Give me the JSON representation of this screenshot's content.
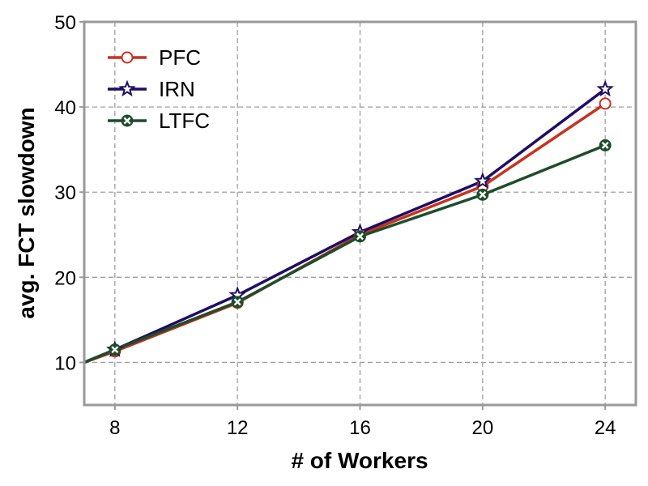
{
  "chart_data": {
    "type": "line",
    "xlabel": "# of Workers",
    "ylabel": "avg. FCT slowdown",
    "x": [
      8,
      12,
      16,
      20,
      24
    ],
    "xlim": [
      7,
      25
    ],
    "ylim": [
      5,
      50
    ],
    "xticks": [
      "8",
      "12",
      "16",
      "20",
      "24"
    ],
    "yticks": [
      "10",
      "20",
      "30",
      "40",
      "50"
    ],
    "grid": true,
    "legend_position": "top-left",
    "series": [
      {
        "name": "PFC",
        "color": "#c8321e",
        "marker": "circle",
        "values": [
          11.3,
          17.0,
          25.0,
          30.7,
          40.4
        ]
      },
      {
        "name": "IRN",
        "color": "#1f0d63",
        "marker": "star",
        "values": [
          11.5,
          17.9,
          25.3,
          31.3,
          42.1
        ]
      },
      {
        "name": "LTFC",
        "color": "#1e4d2b",
        "marker": "x-circle",
        "values": [
          11.5,
          17.1,
          24.8,
          29.7,
          35.5
        ]
      }
    ],
    "line_extension_left": {
      "x": 7,
      "values": [
        10.0,
        10.0,
        10.0
      ]
    }
  }
}
